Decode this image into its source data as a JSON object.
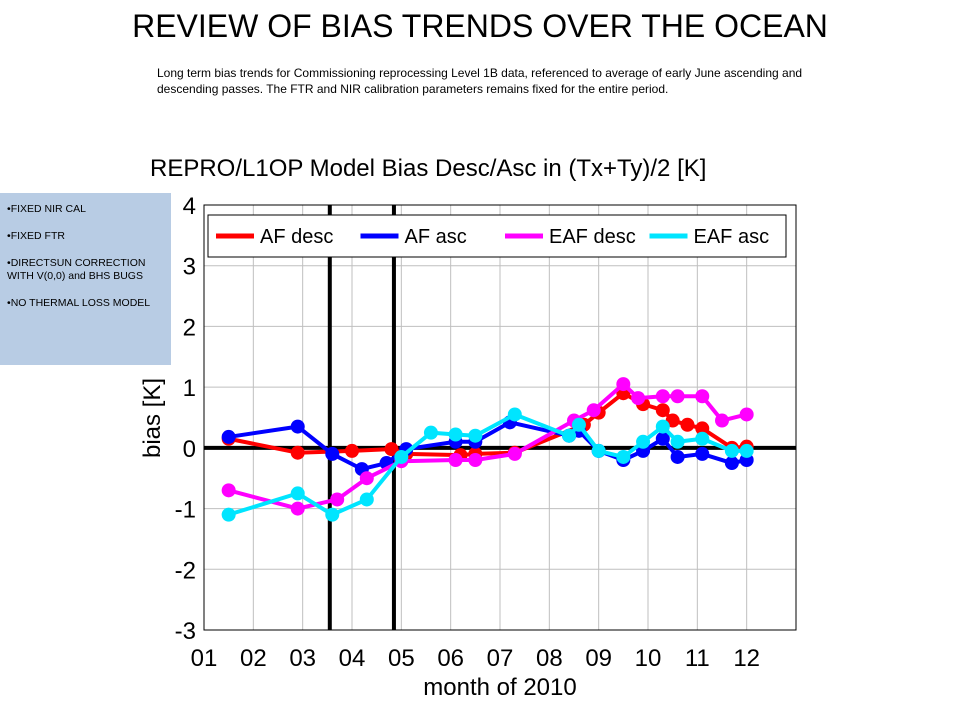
{
  "slide": {
    "title": "REVIEW OF BIAS TRENDS OVER THE OCEAN",
    "description": "Long term bias trends for Commissioning reprocessing Level 1B data, referenced to average of early June ascending and descending passes. The FTR and NIR calibration parameters remains fixed for the entire period."
  },
  "notes": [
    "FIXED NIR CAL",
    "FIXED FTR",
    "DIRECTSUN CORRECTION WITH V(0,0) and BHS BUGS",
    "NO THERMAL LOSS MODEL"
  ],
  "chart_data": {
    "type": "line",
    "title": "REPRO/L1OP Model Bias Desc/Asc in (Tx+Ty)/2 [K]",
    "xlabel": "month of 2010",
    "ylabel": "bias [K]",
    "xlim": [
      1,
      13
    ],
    "ylim": [
      -3,
      4
    ],
    "xtick_labels": [
      "01",
      "02",
      "03",
      "04",
      "05",
      "06",
      "07",
      "08",
      "09",
      "10",
      "11",
      "12"
    ],
    "ytick_labels": [
      "-3",
      "-2",
      "-1",
      "0",
      "1",
      "2",
      "3",
      "4"
    ],
    "grid": true,
    "legend_position": "top",
    "reference_lines_x": [
      3.55,
      4.85
    ],
    "zero_line": 0,
    "series": [
      {
        "name": "AF desc",
        "color": "#ff0000",
        "x": [
          1.5,
          2.9,
          4.0,
          4.8,
          5.1,
          6.2,
          6.5,
          7.3,
          8.7,
          9.0,
          9.5,
          9.9,
          10.3,
          10.5,
          10.8,
          11.1,
          11.7,
          12.0
        ],
        "y": [
          0.15,
          -0.08,
          -0.05,
          -0.02,
          -0.1,
          -0.12,
          -0.1,
          -0.08,
          0.38,
          0.58,
          0.9,
          0.72,
          0.62,
          0.45,
          0.38,
          0.32,
          0.0,
          0.02
        ]
      },
      {
        "name": "AF asc",
        "color": "#0000ff",
        "x": [
          1.5,
          2.9,
          3.6,
          4.2,
          4.7,
          5.1,
          6.1,
          6.5,
          7.2,
          8.4,
          8.6,
          9.0,
          9.5,
          9.9,
          10.3,
          10.6,
          11.1,
          11.7,
          12.0
        ],
        "y": [
          0.18,
          0.35,
          -0.1,
          -0.35,
          -0.25,
          -0.02,
          0.1,
          0.1,
          0.42,
          0.2,
          0.28,
          -0.05,
          -0.2,
          -0.05,
          0.15,
          -0.15,
          -0.1,
          -0.25,
          -0.2
        ]
      },
      {
        "name": "EAF desc",
        "color": "#ff00ff",
        "x": [
          1.5,
          2.9,
          3.7,
          4.3,
          5.0,
          6.1,
          6.5,
          7.3,
          8.5,
          8.9,
          9.5,
          9.8,
          10.3,
          10.6,
          11.1,
          11.5,
          12.0
        ],
        "y": [
          -0.7,
          -1.0,
          -0.85,
          -0.5,
          -0.22,
          -0.2,
          -0.2,
          -0.1,
          0.45,
          0.62,
          1.05,
          0.82,
          0.85,
          0.85,
          0.85,
          0.45,
          0.55
        ]
      },
      {
        "name": "EAF asc",
        "color": "#00e5ff",
        "x": [
          1.5,
          2.9,
          3.6,
          4.3,
          5.0,
          5.6,
          6.1,
          6.5,
          7.3,
          8.4,
          8.6,
          9.0,
          9.5,
          9.9,
          10.3,
          10.6,
          11.1,
          11.7,
          12.0
        ],
        "y": [
          -1.1,
          -0.75,
          -1.1,
          -0.85,
          -0.15,
          0.25,
          0.22,
          0.2,
          0.55,
          0.2,
          0.38,
          -0.05,
          -0.15,
          0.1,
          0.35,
          0.1,
          0.15,
          -0.05,
          -0.05
        ]
      }
    ]
  }
}
